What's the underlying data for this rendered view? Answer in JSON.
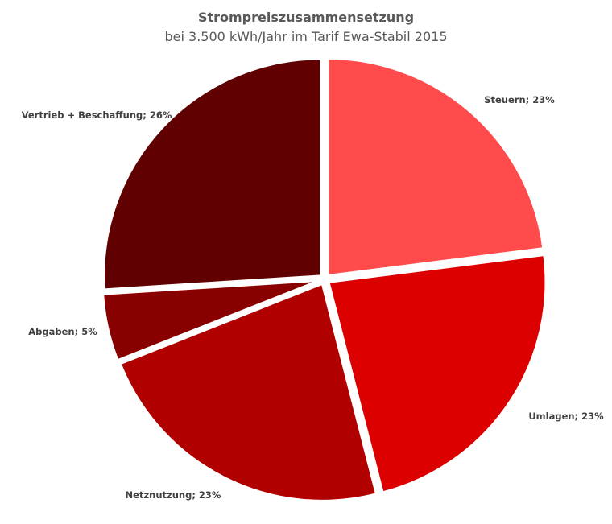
{
  "chart_data": {
    "type": "pie",
    "title": "Strompreiszusammensetzung",
    "subtitle": "bei 3.500 kWh/Jahr im Tarif Ewa-Stabil 2015",
    "start_angle": "top, clockwise",
    "exploded": true,
    "slices": [
      {
        "label": "Steuern; 23%",
        "name": "Steuern",
        "value": 23,
        "color": "#FF4B4B"
      },
      {
        "label": "Umlagen; 23%",
        "name": "Umlagen",
        "value": 23,
        "color": "#DD0000"
      },
      {
        "label": "Netznutzung; 23%",
        "name": "Netznutzung",
        "value": 23,
        "color": "#B00000"
      },
      {
        "label": "Abgaben; 5%",
        "name": "Abgaben",
        "value": 5,
        "color": "#880000"
      },
      {
        "label": "Vertrieb + Beschaffung; 26%",
        "name": "Vertrieb + Beschaffung",
        "value": 26,
        "color": "#600000"
      }
    ]
  }
}
